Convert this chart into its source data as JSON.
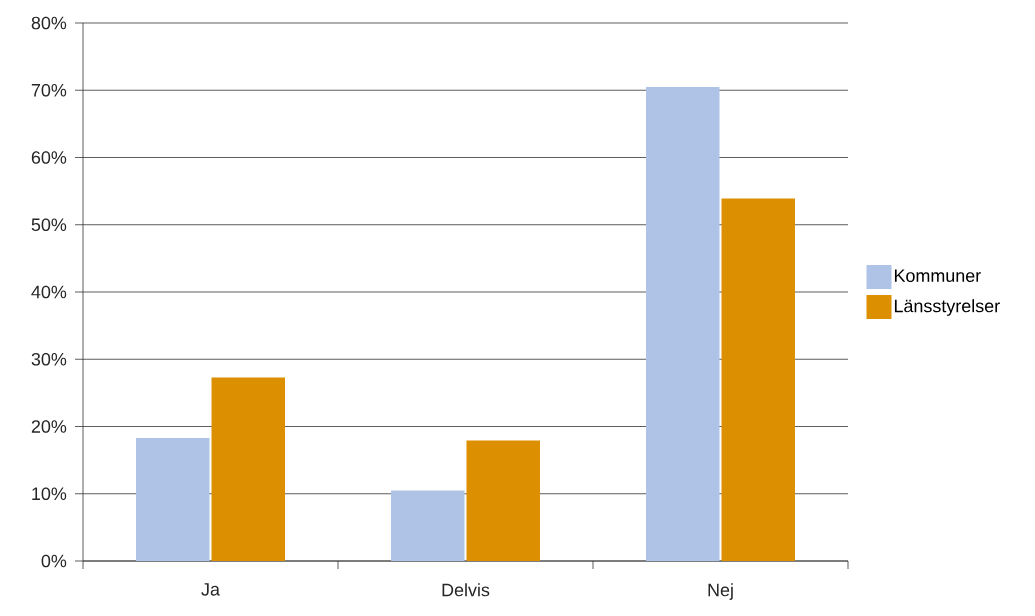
{
  "chart_data": {
    "type": "bar",
    "categories": [
      "Ja",
      "Delvis",
      "Nej"
    ],
    "series": [
      {
        "name": "Kommuner",
        "color": "#aec3e6",
        "values": [
          18.3,
          10.5,
          70.5
        ]
      },
      {
        "name": "Länsstyrelser",
        "color": "#dc8f00",
        "values": [
          27.3,
          17.9,
          53.9
        ]
      }
    ],
    "ylim": [
      0,
      80
    ],
    "yticks": [
      {
        "value": 0,
        "label": "0%"
      },
      {
        "value": 10,
        "label": "10%"
      },
      {
        "value": 20,
        "label": "20%"
      },
      {
        "value": 30,
        "label": "30%"
      },
      {
        "value": 40,
        "label": "40%"
      },
      {
        "value": 50,
        "label": "50%"
      },
      {
        "value": 60,
        "label": "60%"
      },
      {
        "value": 70,
        "label": "70%"
      },
      {
        "value": 80,
        "label": "80%"
      }
    ],
    "grid": "y",
    "legend": "right"
  }
}
